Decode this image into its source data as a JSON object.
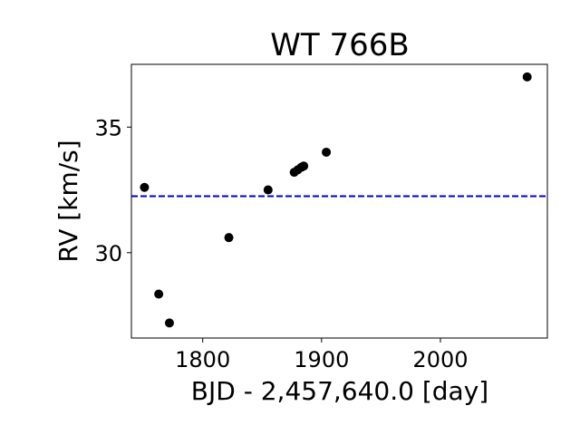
{
  "chart_data": {
    "type": "scatter",
    "title": "WT 766B",
    "xlabel": "BJD - 2,457,640.0 [day]",
    "ylabel": "RV [km/s]",
    "xlim": [
      1740,
      2090
    ],
    "ylim": [
      26.6,
      37.5
    ],
    "xticks": [
      1800,
      1900,
      2000
    ],
    "yticks": [
      30,
      35
    ],
    "grid": false,
    "reference_line": {
      "y": 32.25,
      "style": "dashed",
      "color": "#0000cc"
    },
    "marker_color": "#000000",
    "points": [
      {
        "x": 1751,
        "y": 32.6
      },
      {
        "x": 1763,
        "y": 28.35
      },
      {
        "x": 1772,
        "y": 27.2
      },
      {
        "x": 1822,
        "y": 30.6
      },
      {
        "x": 1855,
        "y": 32.5
      },
      {
        "x": 1877,
        "y": 33.2
      },
      {
        "x": 1880,
        "y": 33.3
      },
      {
        "x": 1883,
        "y": 33.4
      },
      {
        "x": 1885,
        "y": 33.45
      },
      {
        "x": 1904,
        "y": 34.0
      },
      {
        "x": 2073,
        "y": 37.0
      }
    ]
  }
}
